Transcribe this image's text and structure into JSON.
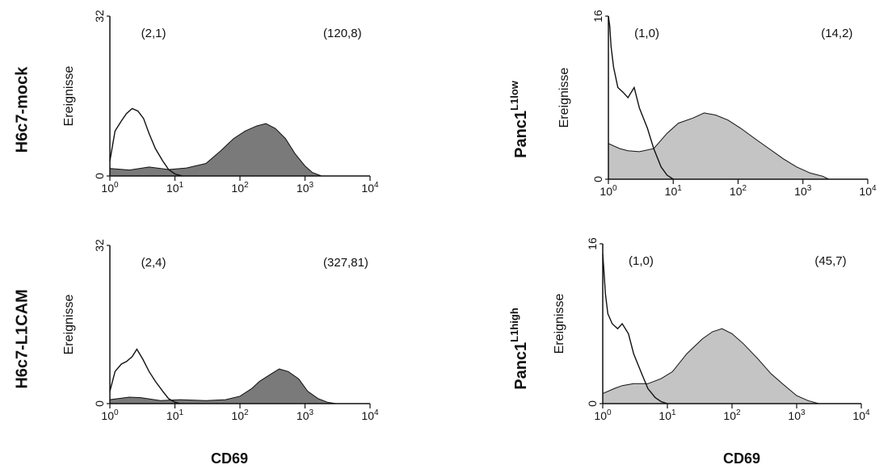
{
  "figure": {
    "row_labels": {
      "h6c7_mock": "H6c7-mock",
      "h6c7_l1cam": "H6c7-L1CAM",
      "panc1_low_base": "Panc1",
      "panc1_low_sup": "L1low",
      "panc1_high_base": "Panc1",
      "panc1_high_sup": "L1high"
    },
    "bottom_labels": {
      "left": "CD69",
      "right": "CD69"
    },
    "colors": {
      "fill_dark": "#7a7a7a",
      "fill_light": "#c4c4c4",
      "line": "#111111"
    }
  },
  "chart_data": [
    {
      "id": "h6c7-mock",
      "type": "area",
      "ylabel": "Ereignisse",
      "xlabel": "",
      "x_scale": "log",
      "xlim": [
        1,
        10000
      ],
      "ylim": [
        0,
        32
      ],
      "y_ticks": [
        "0",
        "32"
      ],
      "x_ticks": [
        {
          "base": "10",
          "exp": "0"
        },
        {
          "base": "10",
          "exp": "1"
        },
        {
          "base": "10",
          "exp": "2"
        },
        {
          "base": "10",
          "exp": "3"
        },
        {
          "base": "10",
          "exp": "4"
        }
      ],
      "annotations": [
        "(2,1)",
        "(120,8)"
      ],
      "fill_color": "#7a7a7a",
      "series": [
        {
          "style": "outline",
          "x": [
            1,
            1.2,
            1.5,
            1.8,
            2.2,
            2.7,
            3.3,
            4,
            5,
            6.5,
            8,
            10,
            13
          ],
          "y": [
            3,
            9,
            11,
            12.5,
            13.5,
            13,
            11.5,
            8.5,
            5.5,
            3,
            1.3,
            0.4,
            0
          ]
        },
        {
          "style": "filled",
          "x": [
            1,
            2,
            4,
            8,
            15,
            30,
            50,
            80,
            120,
            180,
            250,
            350,
            500,
            700,
            1000,
            1300,
            1800
          ],
          "y": [
            1.5,
            1.2,
            1.8,
            1.3,
            1.6,
            2.5,
            5,
            7.5,
            9,
            10,
            10.5,
            9.5,
            7.5,
            4.5,
            2,
            0.7,
            0
          ]
        }
      ]
    },
    {
      "id": "h6c7-l1cam",
      "type": "area",
      "ylabel": "Ereignisse",
      "xlabel": "",
      "x_scale": "log",
      "xlim": [
        1,
        10000
      ],
      "ylim": [
        0,
        32
      ],
      "y_ticks": [
        "0",
        "32"
      ],
      "x_ticks": [
        {
          "base": "10",
          "exp": "0"
        },
        {
          "base": "10",
          "exp": "1"
        },
        {
          "base": "10",
          "exp": "2"
        },
        {
          "base": "10",
          "exp": "3"
        },
        {
          "base": "10",
          "exp": "4"
        }
      ],
      "annotations": [
        "(2,4)",
        "(327,81)"
      ],
      "fill_color": "#7a7a7a",
      "series": [
        {
          "style": "outline",
          "x": [
            1,
            1.2,
            1.5,
            1.8,
            2.2,
            2.6,
            3.2,
            4,
            5,
            6.5,
            8,
            10,
            12
          ],
          "y": [
            2.5,
            6.5,
            8,
            8.5,
            9.5,
            11,
            9,
            6.5,
            4.5,
            2.5,
            1,
            0.3,
            0
          ]
        },
        {
          "style": "filled",
          "x": [
            1,
            2,
            3,
            6,
            12,
            30,
            60,
            100,
            150,
            200,
            300,
            400,
            550,
            800,
            1100,
            1600,
            2200,
            3000
          ],
          "y": [
            0.8,
            1.3,
            1.2,
            0.6,
            0.8,
            0.6,
            0.8,
            1.5,
            3,
            4.5,
            6,
            7,
            6.5,
            5,
            2.5,
            1,
            0.3,
            0
          ]
        }
      ]
    },
    {
      "id": "panc1-l1low",
      "type": "area",
      "ylabel": "Ereignisse",
      "xlabel": "",
      "x_scale": "log",
      "xlim": [
        1,
        10000
      ],
      "ylim": [
        0,
        16
      ],
      "y_ticks": [
        "0",
        "16"
      ],
      "x_ticks": [
        {
          "base": "10",
          "exp": "0"
        },
        {
          "base": "10",
          "exp": "1"
        },
        {
          "base": "10",
          "exp": "2"
        },
        {
          "base": "10",
          "exp": "3"
        },
        {
          "base": "10",
          "exp": "4"
        }
      ],
      "annotations": [
        "(1,0)",
        "(14,2)"
      ],
      "fill_color": "#c4c4c4",
      "series": [
        {
          "style": "outline",
          "x": [
            1,
            1.05,
            1.1,
            1.2,
            1.4,
            1.7,
            2,
            2.5,
            3,
            4,
            5,
            6.5,
            8,
            10
          ],
          "y": [
            16,
            15,
            13,
            11,
            9,
            8.5,
            8,
            9,
            7,
            5,
            3,
            1.2,
            0.4,
            0
          ]
        },
        {
          "style": "filled",
          "x": [
            1,
            1.5,
            2,
            3,
            5,
            8,
            12,
            20,
            30,
            45,
            70,
            110,
            180,
            300,
            500,
            800,
            1300,
            2000,
            2500
          ],
          "y": [
            3.5,
            3,
            2.8,
            2.7,
            3,
            4.5,
            5.5,
            6,
            6.5,
            6.3,
            5.8,
            5,
            4,
            3,
            2,
            1.2,
            0.6,
            0.3,
            0
          ]
        }
      ]
    },
    {
      "id": "panc1-l1high",
      "type": "area",
      "ylabel": "Ereignisse",
      "xlabel": "",
      "x_scale": "log",
      "xlim": [
        1,
        10000
      ],
      "ylim": [
        0,
        16
      ],
      "y_ticks": [
        "0",
        "16"
      ],
      "x_ticks": [
        {
          "base": "10",
          "exp": "0"
        },
        {
          "base": "10",
          "exp": "1"
        },
        {
          "base": "10",
          "exp": "2"
        },
        {
          "base": "10",
          "exp": "3"
        },
        {
          "base": "10",
          "exp": "4"
        }
      ],
      "annotations": [
        "(1,0)",
        "(45,7)"
      ],
      "fill_color": "#c4c4c4",
      "series": [
        {
          "style": "outline",
          "x": [
            1,
            1.05,
            1.1,
            1.2,
            1.4,
            1.7,
            2,
            2.5,
            3,
            4,
            5,
            6.5,
            8,
            10
          ],
          "y": [
            15,
            13,
            11,
            9,
            8,
            7.5,
            8,
            7,
            5,
            3,
            1.5,
            0.6,
            0.2,
            0
          ]
        },
        {
          "style": "filled",
          "x": [
            1,
            1.5,
            2,
            3,
            5,
            8,
            12,
            20,
            35,
            50,
            70,
            100,
            150,
            250,
            400,
            600,
            1000,
            1500,
            2200
          ],
          "y": [
            1,
            1.5,
            1.8,
            2,
            2,
            2.5,
            3.2,
            5,
            6.5,
            7.2,
            7.5,
            7,
            6,
            4.5,
            3,
            2,
            0.8,
            0.3,
            0
          ]
        }
      ]
    }
  ]
}
